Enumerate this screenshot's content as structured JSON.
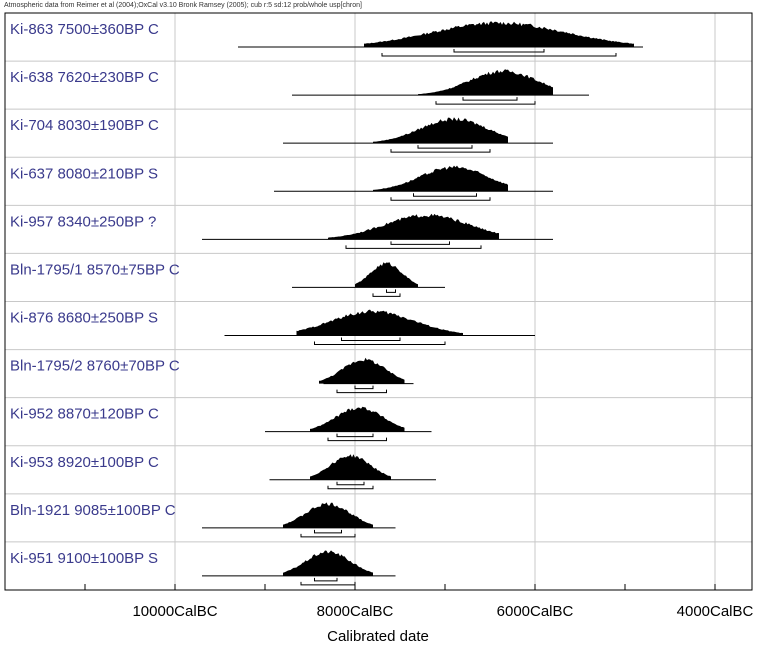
{
  "header": {
    "text": "Atmospheric data from Reimer et al (2004);OxCal v3.10 Bronk Ramsey (2005); cub r:5 sd:12 prob/whole usp[chron]"
  },
  "colors": {
    "label_text": "#3a3a8c",
    "grid": "#c8c8c8",
    "frame": "#000000",
    "distribution_fill": "#000000"
  },
  "chart_data": {
    "type": "multiple-plot",
    "title": "",
    "xlabel": "Calibrated date",
    "ylabel": "",
    "xlim_calbc": [
      11000,
      3600
    ],
    "x_ticks": [
      {
        "value": 10000,
        "label": "10000CalBC"
      },
      {
        "value": 8000,
        "label": "8000CalBC"
      },
      {
        "value": 6000,
        "label": "6000CalBC"
      },
      {
        "value": 4000,
        "label": "4000CalBC"
      }
    ],
    "minor_tick_interval": 1000,
    "grid": true,
    "samples": [
      {
        "label": "Ki-863  7500±360BP  C",
        "range_calbc": [
          9300,
          4800
        ],
        "peak_calbc": 6400,
        "hpd68_calbc": [
          6900,
          5900
        ],
        "hpd95_calbc": [
          7700,
          5100
        ]
      },
      {
        "label": "Ki-638  7620±230BP  C",
        "range_calbc": [
          8700,
          5400
        ],
        "peak_calbc": 6350,
        "hpd68_calbc": [
          6800,
          6200
        ],
        "hpd95_calbc": [
          7100,
          6000
        ]
      },
      {
        "label": "Ki-704  8030±190BP  C",
        "range_calbc": [
          8800,
          5800
        ],
        "peak_calbc": 6900,
        "hpd68_calbc": [
          7300,
          6700
        ],
        "hpd95_calbc": [
          7600,
          6500
        ]
      },
      {
        "label": "Ki-637  8080±210BP  S",
        "range_calbc": [
          8900,
          5800
        ],
        "peak_calbc": 6900,
        "hpd68_calbc": [
          7350,
          6650
        ],
        "hpd95_calbc": [
          7600,
          6500
        ]
      },
      {
        "label": "Ki-957  8340±250BP  ?",
        "range_calbc": [
          9700,
          5800
        ],
        "peak_calbc": 7200,
        "hpd68_calbc": [
          7600,
          6950
        ],
        "hpd95_calbc": [
          8100,
          6600
        ]
      },
      {
        "label": "Bln-1795/1  8570±75BP  C",
        "range_calbc": [
          8700,
          7000
        ],
        "peak_calbc": 7650,
        "hpd68_calbc": [
          7650,
          7550
        ],
        "hpd95_calbc": [
          7800,
          7500
        ]
      },
      {
        "label": "Ki-876  8680±250BP  S",
        "range_calbc": [
          9450,
          6000
        ],
        "peak_calbc": 7800,
        "hpd68_calbc": [
          8150,
          7500
        ],
        "hpd95_calbc": [
          8450,
          7000
        ]
      },
      {
        "label": "Bln-1795/2  8760±70BP  C",
        "range_calbc": [
          8350,
          7350
        ],
        "peak_calbc": 7900,
        "hpd68_calbc": [
          8000,
          7800
        ],
        "hpd95_calbc": [
          8200,
          7650
        ]
      },
      {
        "label": "Ki-952  8870±120BP  C",
        "range_calbc": [
          9000,
          7150
        ],
        "peak_calbc": 7950,
        "hpd68_calbc": [
          8200,
          7800
        ],
        "hpd95_calbc": [
          8300,
          7650
        ]
      },
      {
        "label": "Ki-953  8920±100BP  C",
        "range_calbc": [
          8950,
          7100
        ],
        "peak_calbc": 8050,
        "hpd68_calbc": [
          8200,
          7900
        ],
        "hpd95_calbc": [
          8300,
          7800
        ]
      },
      {
        "label": "Bln-1921  9085±100BP  C",
        "range_calbc": [
          9700,
          7550
        ],
        "peak_calbc": 8300,
        "hpd68_calbc": [
          8450,
          8150
        ],
        "hpd95_calbc": [
          8600,
          8000
        ]
      },
      {
        "label": "Ki-951  9100±100BP  S",
        "range_calbc": [
          9700,
          7550
        ],
        "peak_calbc": 8300,
        "hpd68_calbc": [
          8450,
          8200
        ],
        "hpd95_calbc": [
          8600,
          8000
        ]
      }
    ]
  }
}
